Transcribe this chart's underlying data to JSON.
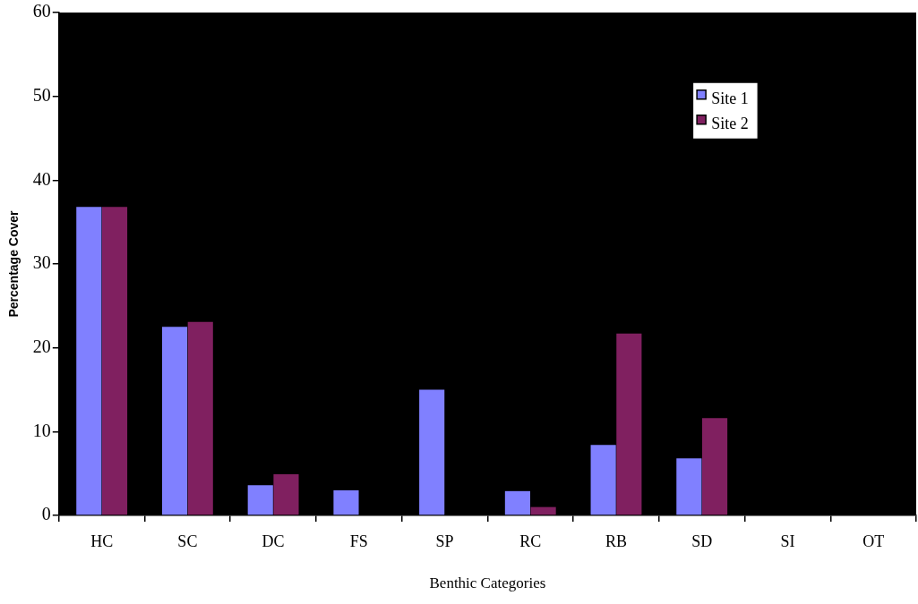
{
  "chart_data": {
    "type": "bar",
    "xlabel": "Benthic Categories",
    "ylabel": "Percentage Cover",
    "categories": [
      "HC",
      "SC",
      "DC",
      "FS",
      "SP",
      "RC",
      "RB",
      "SD",
      "SI",
      "OT"
    ],
    "series": [
      {
        "name": "Site 1",
        "color": "#8080ff",
        "values": [
          36.8,
          22.5,
          3.6,
          3.0,
          15.0,
          2.9,
          8.4,
          6.8,
          0,
          0
        ]
      },
      {
        "name": "Site 2",
        "color": "#802060",
        "values": [
          36.8,
          23.1,
          4.9,
          0,
          0,
          1.0,
          21.7,
          11.6,
          0,
          0
        ]
      }
    ],
    "ylim": [
      0,
      60
    ],
    "yticks": [
      0,
      10,
      20,
      30,
      40,
      50,
      60
    ],
    "grid": false,
    "legend": "top right"
  }
}
